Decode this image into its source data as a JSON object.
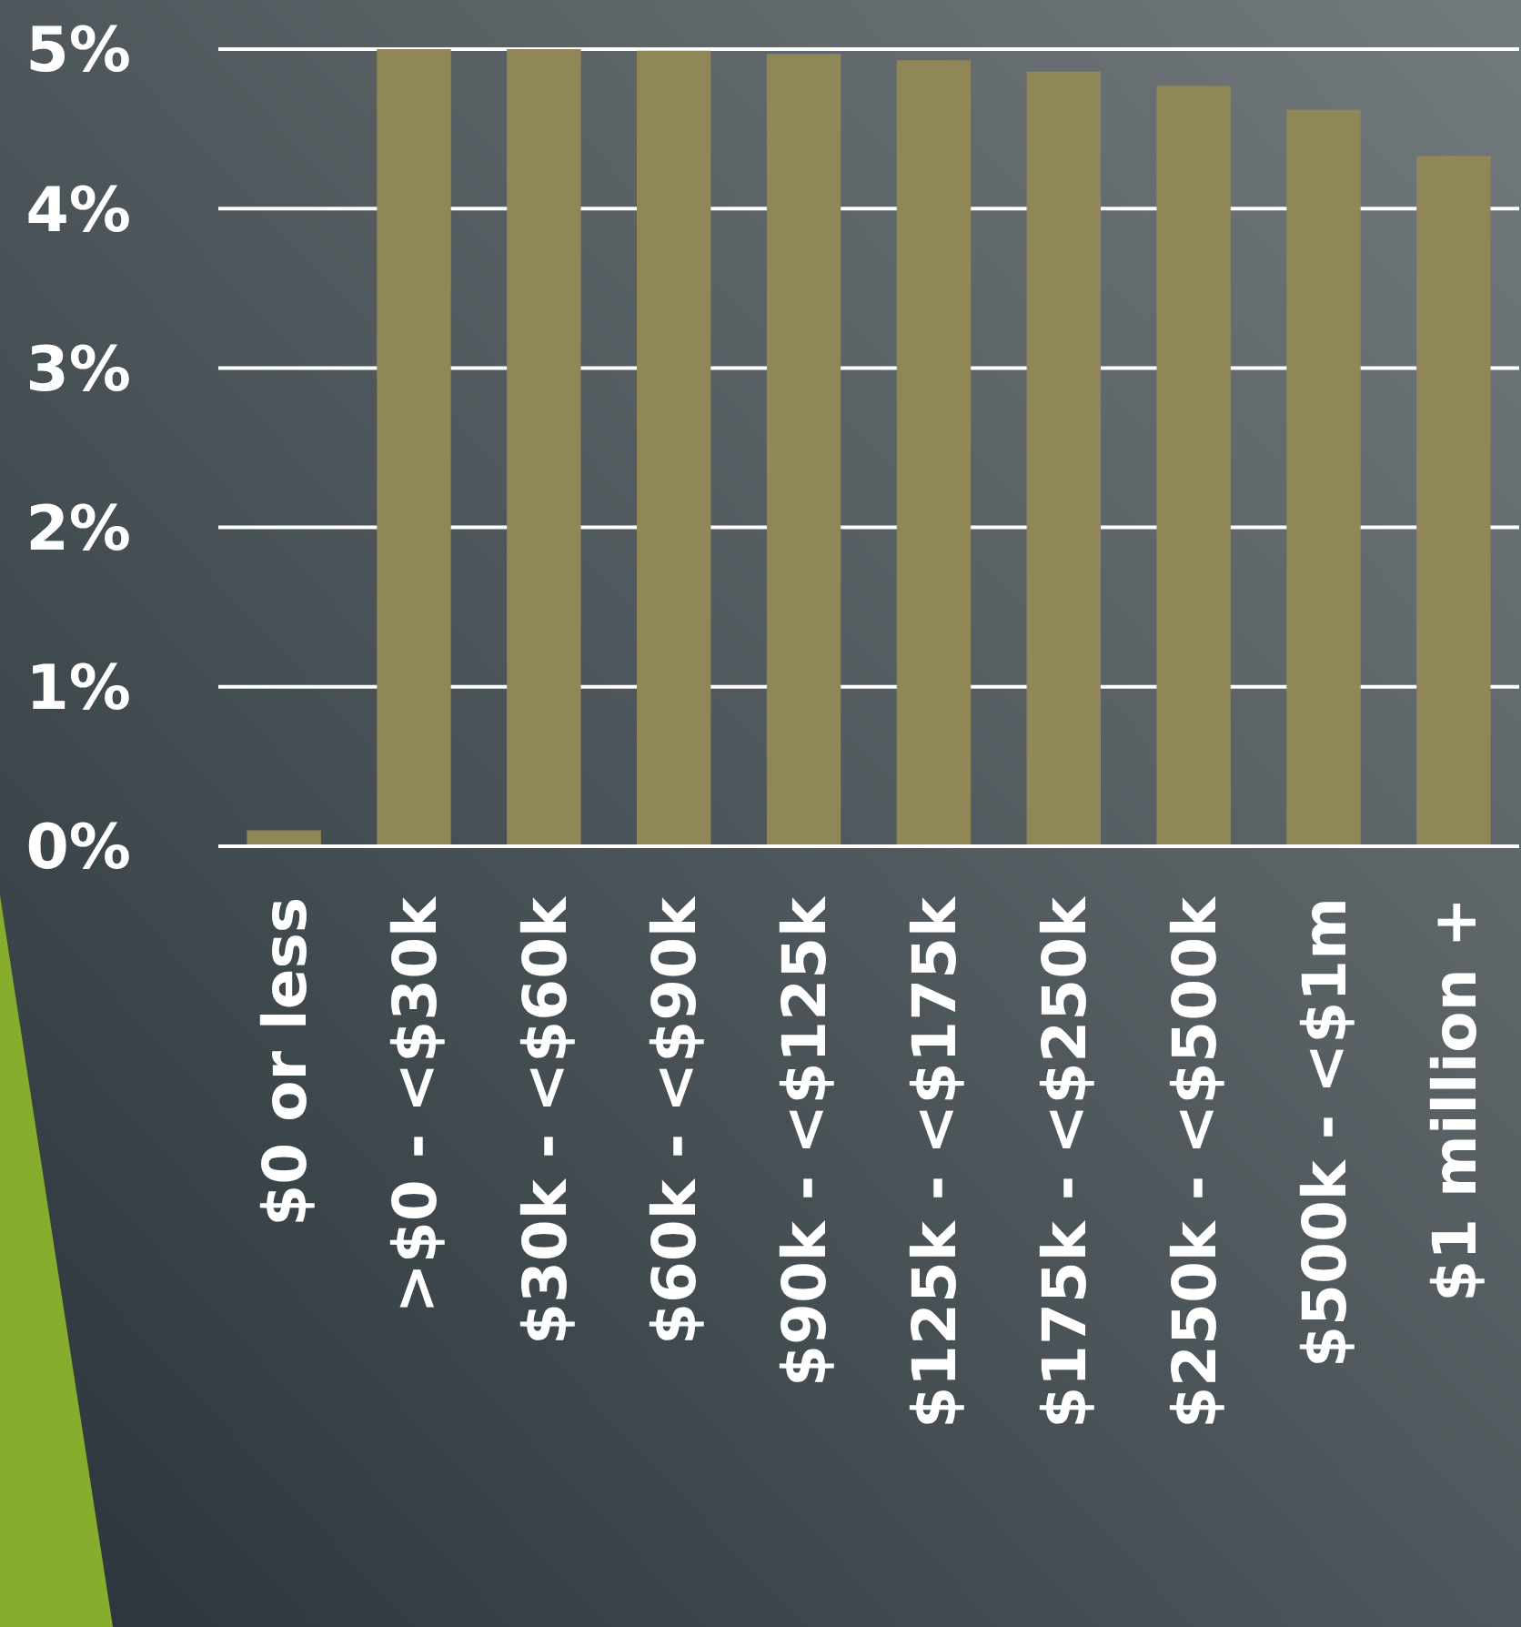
{
  "chart_data": {
    "type": "bar",
    "categories": [
      "$0 or less",
      ">$0 - <$30k",
      "$30k - <$60k",
      "$60k - <$90k",
      "$90k - <$125k",
      "$125k - <$175k",
      "$175k - <$250k",
      "$250k - <$500k",
      "$500k - <$1m",
      "$1 million +"
    ],
    "values": [
      0.1,
      5.0,
      5.0,
      4.99,
      4.97,
      4.93,
      4.86,
      4.77,
      4.62,
      4.33
    ],
    "color": "#8f8757",
    "ylim": [
      0,
      5
    ],
    "yticks": [
      {
        "value": 0,
        "label": "0%"
      },
      {
        "value": 1,
        "label": "1%"
      },
      {
        "value": 2,
        "label": "2%"
      },
      {
        "value": 3,
        "label": "3%"
      },
      {
        "value": 4,
        "label": "4%"
      },
      {
        "value": 5,
        "label": "5%"
      }
    ],
    "grid": "y"
  }
}
